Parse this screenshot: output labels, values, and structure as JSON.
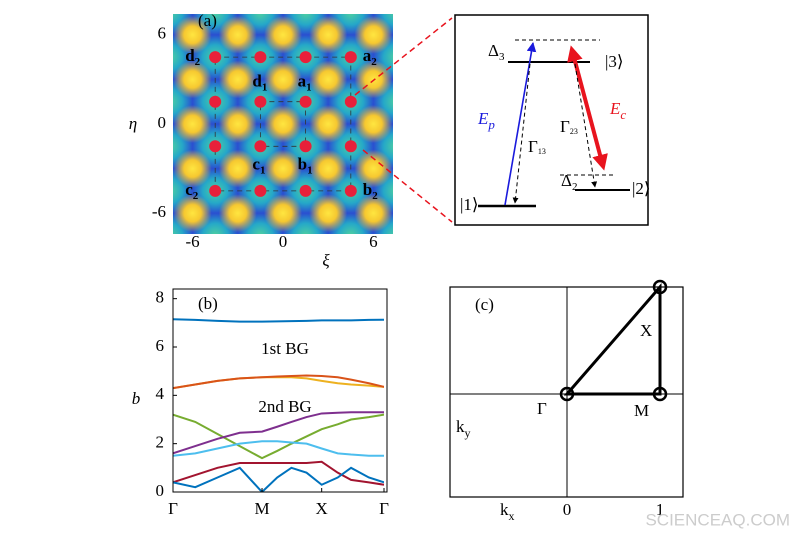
{
  "chart_data": [
    {
      "type": "heatmap",
      "panel_label": "(a)",
      "x_label": "ξ",
      "y_label": "η",
      "xlim": [
        -7.3,
        7.3
      ],
      "ylim": [
        -7.4,
        7.4
      ],
      "xticks": [
        -6,
        0,
        6
      ],
      "yticks": [
        -6,
        0,
        6
      ],
      "points": {
        "color": "#e8203a",
        "x": [
          -4.5,
          -1.5,
          1.5,
          4.5,
          -4.5,
          -1.5,
          1.5,
          4.5,
          -4.5,
          -1.5,
          1.5,
          4.5,
          -4.5,
          -1.5,
          1.5,
          4.5
        ],
        "y": [
          4.5,
          4.5,
          4.5,
          4.5,
          1.5,
          1.5,
          1.5,
          1.5,
          -1.5,
          -1.5,
          -1.5,
          -1.5,
          -4.5,
          -4.5,
          -4.5,
          -4.5
        ],
        "labels": [
          {
            "text": "d",
            "sub": "2"
          },
          null,
          null,
          {
            "text": "a",
            "sub": "2"
          },
          null,
          {
            "text": "d",
            "sub": "1"
          },
          {
            "text": "a",
            "sub": "1"
          },
          null,
          null,
          {
            "text": "c",
            "sub": "1"
          },
          {
            "text": "b",
            "sub": "1"
          },
          null,
          {
            "text": "c",
            "sub": "2"
          },
          null,
          null,
          {
            "text": "b",
            "sub": "2"
          }
        ]
      }
    },
    {
      "type": "line",
      "panel_label": "(b)",
      "y_label": "b",
      "x": [
        0,
        0.25,
        0.5,
        0.75,
        1,
        1.17,
        1.33,
        1.5,
        1.67,
        1.85,
        2.0,
        2.2,
        2.37
      ],
      "xlim": [
        0,
        2.37
      ],
      "xticks": [
        {
          "value": 0,
          "label": "Γ"
        },
        {
          "value": 1,
          "label": "M"
        },
        {
          "value": 1.67,
          "label": "X"
        },
        {
          "value": 2.37,
          "label": "Γ"
        }
      ],
      "ylim": [
        0,
        8.4
      ],
      "yticks": [
        0,
        2,
        4,
        6,
        8
      ],
      "annotations": [
        "1st BG",
        "2nd BG"
      ],
      "series": [
        {
          "color": "#0072BD",
          "values": [
            7.15,
            7.12,
            7.08,
            7.05,
            7.05,
            7.06,
            7.07,
            7.08,
            7.1,
            7.1,
            7.1,
            7.12,
            7.13
          ]
        },
        {
          "color": "#EDB120",
          "values": [
            4.3,
            4.45,
            4.6,
            4.7,
            4.75,
            4.75,
            4.75,
            4.7,
            4.6,
            4.5,
            4.45,
            4.4,
            4.35
          ]
        },
        {
          "color": "#D95319",
          "values": [
            4.3,
            4.45,
            4.6,
            4.7,
            4.75,
            4.78,
            4.8,
            4.82,
            4.8,
            4.75,
            4.65,
            4.5,
            4.35
          ]
        },
        {
          "color": "#77AC30",
          "values": [
            3.2,
            2.9,
            2.4,
            1.9,
            1.4,
            1.7,
            2.0,
            2.3,
            2.6,
            2.8,
            3.0,
            3.1,
            3.2
          ]
        },
        {
          "color": "#7E2F8E",
          "values": [
            1.6,
            1.9,
            2.2,
            2.45,
            2.5,
            2.7,
            2.9,
            3.1,
            3.25,
            3.28,
            3.3,
            3.3,
            3.3
          ]
        },
        {
          "color": "#4DBEEE",
          "values": [
            1.5,
            1.6,
            1.8,
            2.0,
            2.1,
            2.1,
            2.05,
            2.0,
            1.8,
            1.6,
            1.55,
            1.5,
            1.5
          ]
        },
        {
          "color": "#A2142F",
          "values": [
            0.4,
            0.7,
            1.0,
            1.2,
            1.2,
            1.2,
            1.2,
            1.2,
            1.25,
            0.8,
            0.5,
            0.4,
            0.3
          ]
        },
        {
          "color": "#0072BD",
          "values": [
            0.4,
            0.2,
            0.6,
            1.0,
            0,
            0.6,
            1.0,
            0.8,
            0.3,
            0.6,
            1.0,
            0.6,
            0.4
          ]
        }
      ]
    }
  ],
  "level_diagram": {
    "level_3": "|3⟩",
    "level_2": "|2⟩",
    "level_1": "|1⟩",
    "delta_3": {
      "text": "Δ",
      "sub": "3"
    },
    "delta_2": {
      "text": "Δ",
      "sub": "2"
    },
    "probe": {
      "text": "E",
      "sub": "p"
    },
    "coupling": {
      "text": "E",
      "sub": "c"
    },
    "gamma_13": {
      "text": "Γ",
      "sub": "13"
    },
    "gamma_23": {
      "text": "Γ",
      "sub": "23"
    }
  },
  "brillouin_zone": {
    "panel_label": "(c)",
    "gamma": "Γ",
    "m": "M",
    "x": "X",
    "ky": {
      "text": "k",
      "sub": "y"
    },
    "kx": {
      "text": "k",
      "sub": "x"
    },
    "tick_0": "0",
    "tick_1": "1"
  },
  "watermark": "SCIENCEAQ.COM"
}
